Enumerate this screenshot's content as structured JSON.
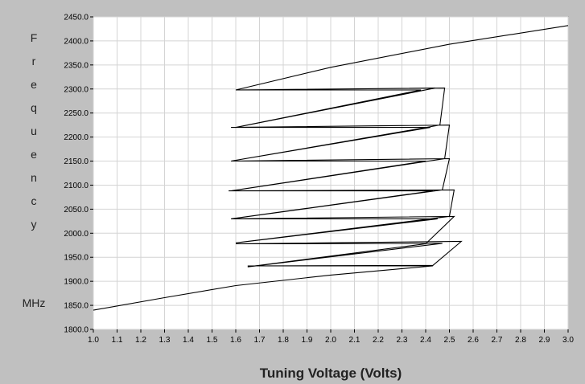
{
  "chart_data": {
    "type": "line",
    "title": "",
    "xlabel": "Tuning Voltage (Volts)",
    "ylabel": "Frequency",
    "ylabel_unit": "MHz",
    "xlim": [
      1.0,
      3.0
    ],
    "ylim": [
      1800,
      2450
    ],
    "grid": true,
    "colors": {
      "background": "#c0c0c0",
      "plot_bg": "#ffffff",
      "grid": "#d4d4d4",
      "line": "#000000"
    },
    "x_ticks": [
      "1.0",
      "1.1",
      "1.2",
      "1.3",
      "1.4",
      "1.5",
      "1.6",
      "1.7",
      "1.8",
      "1.9",
      "2.0",
      "2.1",
      "2.2",
      "2.3",
      "2.4",
      "2.5",
      "2.6",
      "2.7",
      "2.8",
      "2.9",
      "3.0"
    ],
    "y_ticks": [
      "1800.0",
      "1850.0",
      "1900.0",
      "1950.0",
      "2000.0",
      "2050.0",
      "2100.0",
      "2150.0",
      "2200.0",
      "2250.0",
      "2300.0",
      "2350.0",
      "2400.0",
      "2450.0"
    ],
    "series": [
      {
        "values": [
          [
            1.0,
            1840
          ],
          [
            1.3,
            1866
          ],
          [
            1.6,
            1891
          ],
          [
            2.0,
            1913
          ],
          [
            2.43,
            1932
          ],
          [
            1.65,
            1932
          ],
          [
            2.43,
            1933
          ],
          [
            2.55,
            1983
          ],
          [
            1.6,
            1978
          ],
          [
            2.47,
            1979
          ],
          [
            1.65,
            1930
          ],
          [
            2.4,
            1978
          ],
          [
            2.52,
            2035
          ],
          [
            1.58,
            2030
          ],
          [
            2.45,
            2030
          ],
          [
            1.6,
            1980
          ],
          [
            2.5,
            2035
          ],
          [
            2.52,
            2090
          ],
          [
            1.57,
            2088
          ],
          [
            2.43,
            2088
          ],
          [
            1.58,
            2030
          ],
          [
            2.47,
            2090
          ],
          [
            2.5,
            2155
          ],
          [
            1.58,
            2150
          ],
          [
            2.4,
            2150
          ],
          [
            1.58,
            2088
          ],
          [
            2.48,
            2155
          ],
          [
            2.5,
            2225
          ],
          [
            1.58,
            2220
          ],
          [
            2.42,
            2220
          ],
          [
            1.58,
            2150
          ],
          [
            2.46,
            2225
          ],
          [
            2.48,
            2302
          ],
          [
            1.6,
            2298
          ],
          [
            2.38,
            2298
          ],
          [
            1.6,
            2220
          ],
          [
            2.44,
            2302
          ],
          [
            1.6,
            2298
          ],
          [
            2.0,
            2345
          ],
          [
            2.5,
            2393
          ],
          [
            3.0,
            2432
          ]
        ]
      }
    ]
  }
}
